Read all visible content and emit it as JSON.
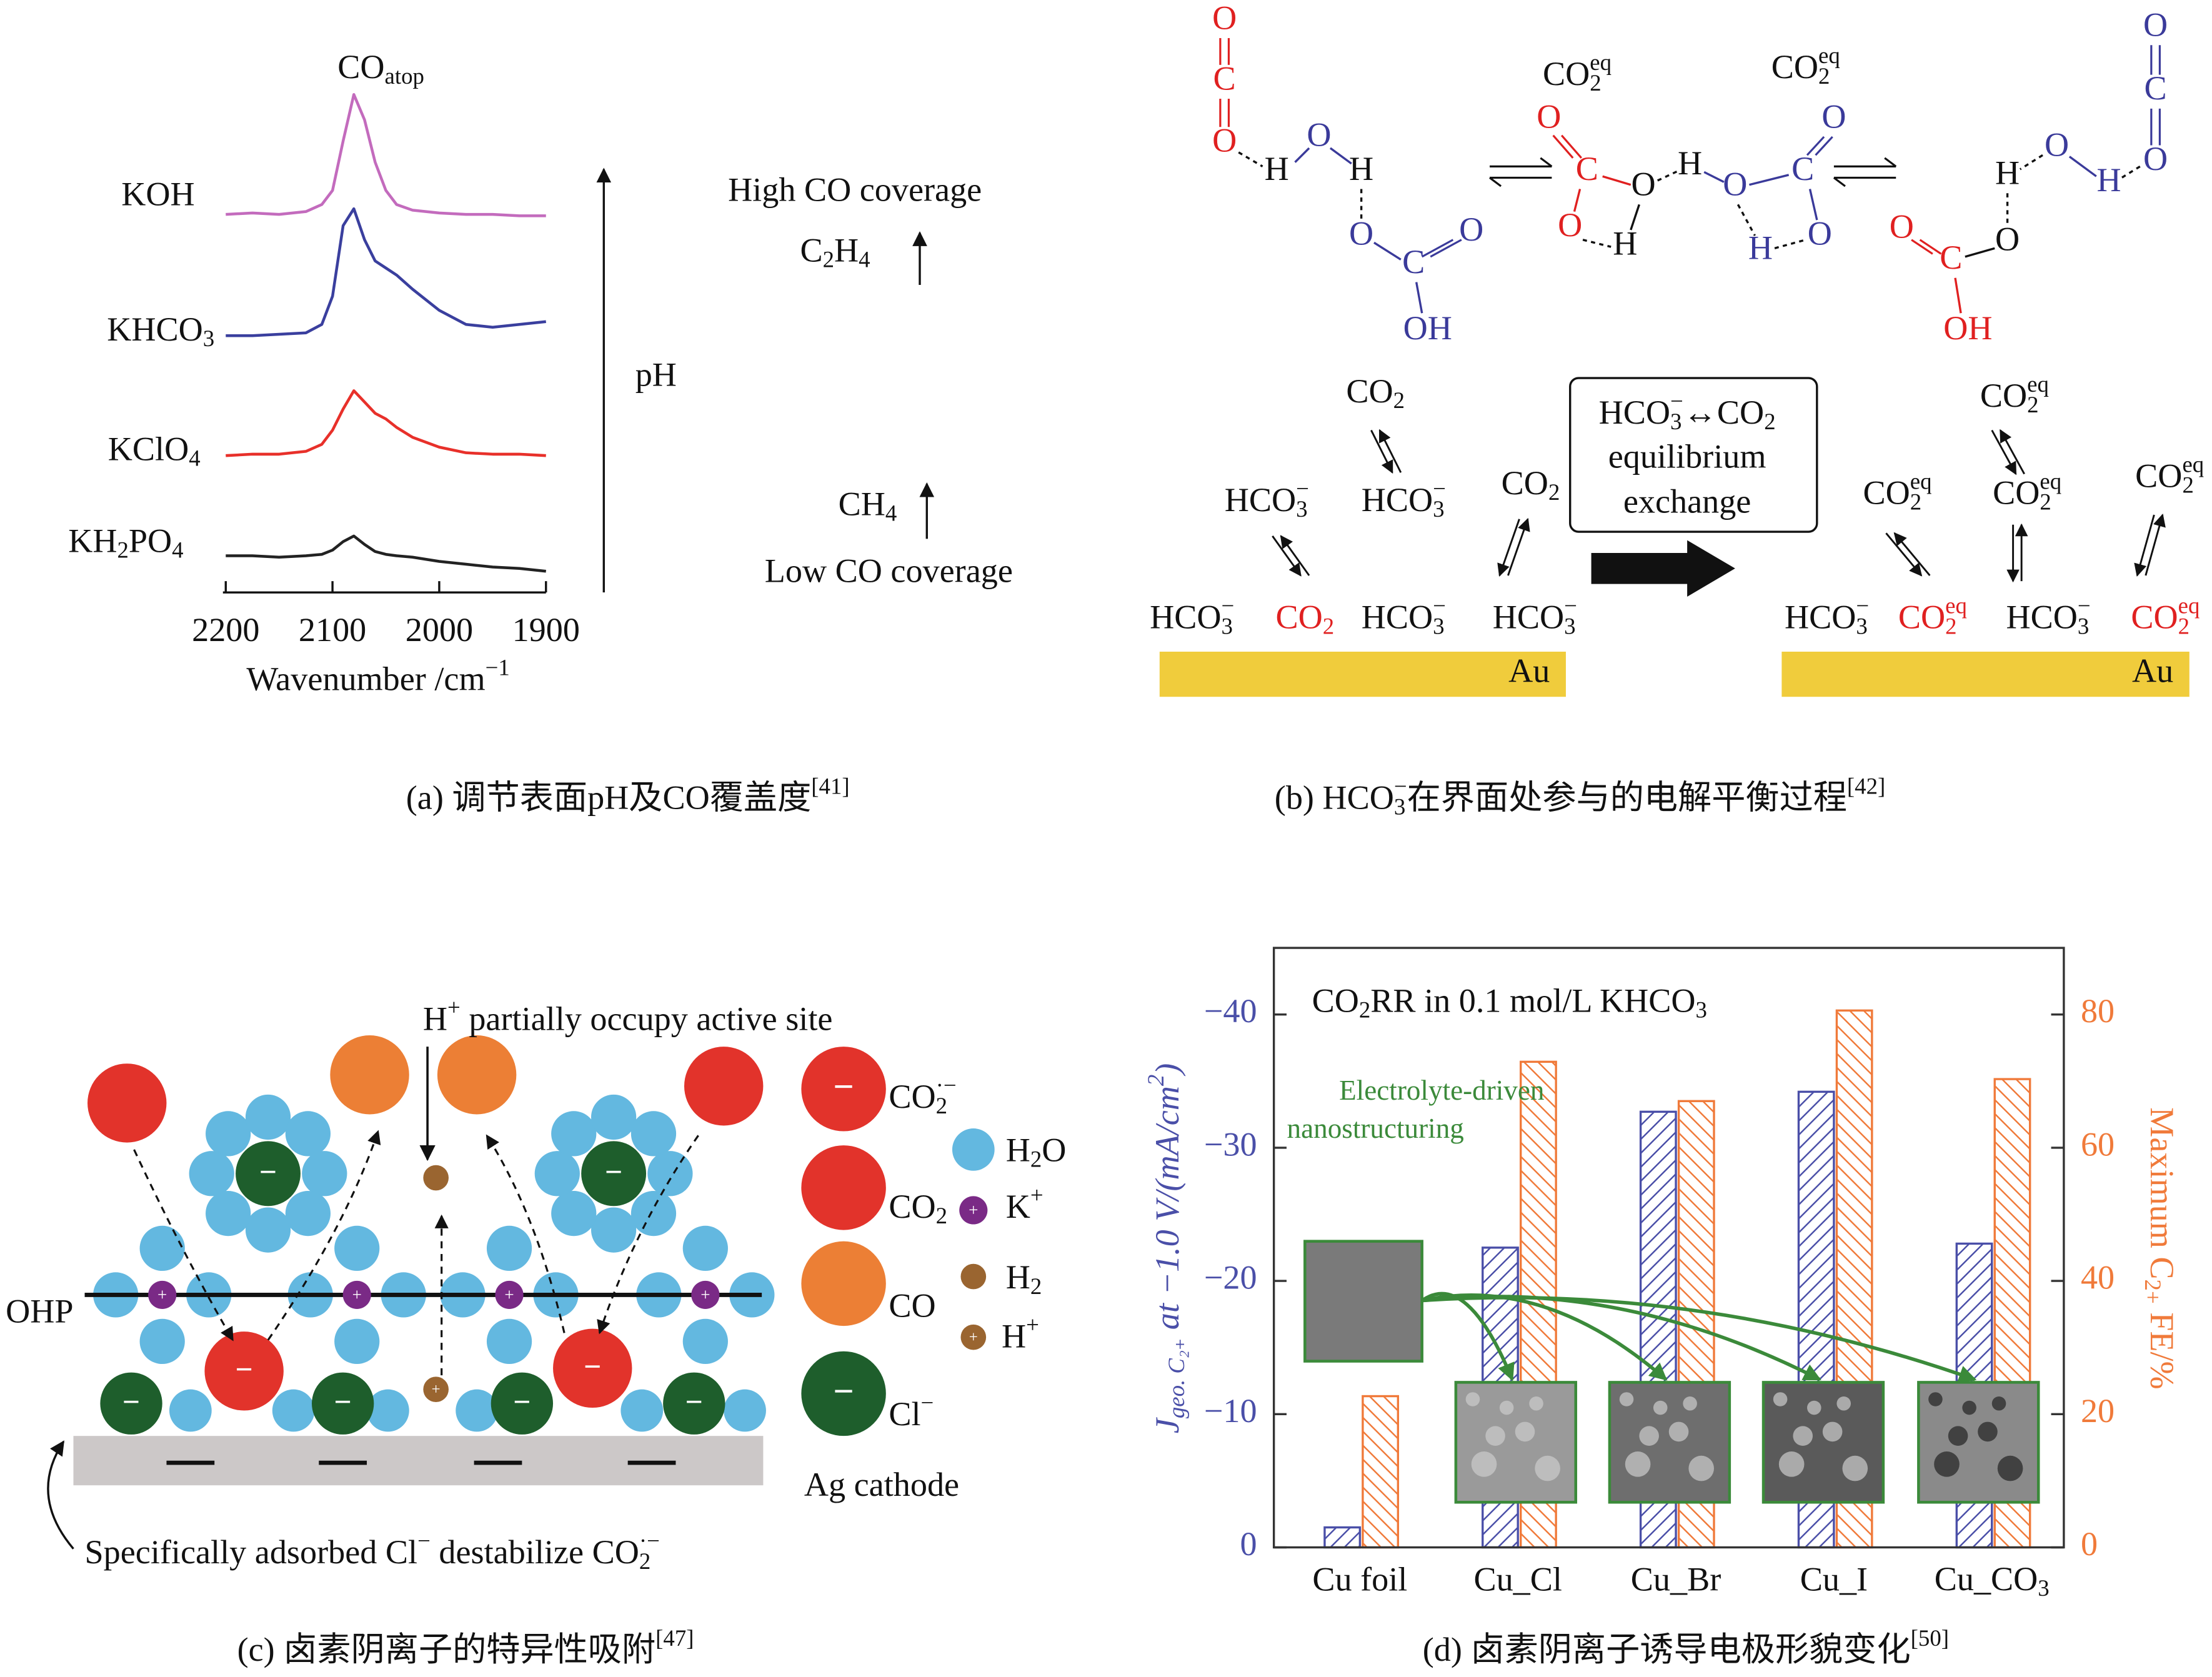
{
  "chart_data": [
    {
      "type": "line",
      "peak_label": [
        {
          "text": "CO"
        },
        {
          "sub": "atop"
        }
      ],
      "x": [
        2200,
        2175,
        2150,
        2125,
        2110,
        2100,
        2090,
        2080,
        2070,
        2060,
        2050,
        2040,
        2025,
        2000,
        1975,
        1950,
        1925,
        1900
      ],
      "series": [
        {
          "name": "KOH",
          "color": "#c36bbd",
          "values": [
            0.03,
            0.04,
            0.03,
            0.05,
            0.1,
            0.2,
            0.55,
            0.88,
            0.7,
            0.4,
            0.2,
            0.1,
            0.06,
            0.04,
            0.03,
            0.03,
            0.02,
            0.02
          ]
        },
        {
          "name": [
            {
              "text": "KHCO"
            },
            {
              "sub": "3"
            }
          ],
          "color": "#3a3f9e",
          "values": [
            0.02,
            0.02,
            0.03,
            0.04,
            0.1,
            0.3,
            0.8,
            0.92,
            0.7,
            0.55,
            0.5,
            0.45,
            0.35,
            0.2,
            0.1,
            0.08,
            0.1,
            0.12
          ]
        },
        {
          "name": [
            {
              "text": "KClO"
            },
            {
              "sub": "4"
            }
          ],
          "color": "#e8302a",
          "values": [
            0.02,
            0.03,
            0.03,
            0.05,
            0.1,
            0.2,
            0.35,
            0.48,
            0.4,
            0.32,
            0.28,
            0.22,
            0.15,
            0.08,
            0.04,
            0.03,
            0.03,
            0.02
          ]
        },
        {
          "name": [
            {
              "text": "KH"
            },
            {
              "sub": "2"
            },
            {
              "text": "PO"
            },
            {
              "sub": "4"
            }
          ],
          "color": "#222222",
          "values": [
            0.12,
            0.12,
            0.11,
            0.12,
            0.13,
            0.16,
            0.22,
            0.26,
            0.2,
            0.15,
            0.13,
            0.12,
            0.11,
            0.08,
            0.06,
            0.04,
            0.03,
            0.01
          ]
        }
      ],
      "xlim": [
        2200,
        1900
      ],
      "xticks": [
        2200,
        2100,
        2000,
        1900
      ],
      "x_label": [
        {
          "text": "Wavenumber /cm"
        },
        {
          "sup": "−1"
        }
      ],
      "ph_label": "pH",
      "high_label": "High CO coverage",
      "c2h4_label": [
        {
          "text": "C"
        },
        {
          "sub": "2"
        },
        {
          "text": "H"
        },
        {
          "sub": "4"
        }
      ],
      "ch4_label": [
        {
          "text": "CH"
        },
        {
          "sub": "4"
        }
      ],
      "low_label": "Low CO coverage",
      "caption": [
        {
          "text": "(a) 调节表面pH及CO覆盖度"
        },
        {
          "sup": "[41]"
        }
      ]
    },
    {
      "type": "bar",
      "categories": [
        "Cu foil",
        "Cu_Cl",
        "Cu_Br",
        "Cu_I",
        [
          {
            "text": "Cu_CO"
          },
          {
            "sub": "3"
          }
        ]
      ],
      "series": [
        {
          "color": "#4a4fa8",
          "values": [
            -1.5,
            -22.5,
            -32.7,
            -34.2,
            -22.8
          ]
        },
        {
          "color": "#f07a3a",
          "axis": "y2",
          "values": [
            22.7,
            72.9,
            67.0,
            80.6,
            70.3
          ]
        }
      ],
      "ylim": [
        0,
        -45
      ],
      "yticks": [
        0,
        {
          "value": -10,
          "label": "−10"
        },
        {
          "value": -20,
          "label": "−20"
        },
        {
          "value": -30,
          "label": "−30"
        },
        {
          "value": -40,
          "label": "−40"
        }
      ],
      "y2lim": [
        0,
        90
      ],
      "y2ticks": [
        0,
        20,
        40,
        60,
        80
      ],
      "y_label": [
        {
          "text": "J"
        },
        {
          "sub": "geo. C₂₊"
        },
        {
          "text": " at −1.0 V/(mA/cm"
        },
        {
          "sup": "2"
        },
        {
          "text": ")"
        }
      ],
      "y2_label": [
        {
          "text": "Maximum C"
        },
        {
          "sub": "2+"
        },
        {
          "text": " FE/%"
        }
      ],
      "annotation": [
        {
          "text": "CO"
        },
        {
          "sub": "2"
        },
        {
          "text": "RR in 0.1 mol/L KHCO"
        },
        {
          "sub": "3"
        }
      ],
      "note_line1": "Electrolyte-driven",
      "note_line2": "nanostructuring",
      "caption": [
        {
          "text": "(d) 卤素阴离子诱导电极形貌变化"
        },
        {
          "sup": "[50]"
        }
      ]
    }
  ],
  "panel_b": {
    "atoms": [
      {
        "text": "O",
        "color": "#e02020"
      },
      {
        "text": "C",
        "color": "#e02020"
      },
      {
        "text": "O",
        "color": "#e02020"
      },
      {
        "text": "H",
        "color": "#111111"
      },
      {
        "text": "O",
        "color": "#3a3a9a"
      },
      {
        "text": "H",
        "color": "#111111"
      },
      {
        "text": "O",
        "color": "#3a3a9a"
      },
      {
        "text": "C",
        "color": "#3a3a9a"
      },
      {
        "text": "O",
        "color": "#3a3a9a"
      },
      {
        "text": "OH",
        "color": "#3a3a9a"
      },
      {
        "text": "O",
        "color": "#e02020"
      },
      {
        "text": "C",
        "color": "#e02020"
      },
      {
        "text": "O",
        "color": "#e02020"
      },
      {
        "text": "O",
        "color": "#111111"
      },
      {
        "text": "H",
        "color": "#111111"
      },
      {
        "text": "H",
        "color": "#111111"
      },
      {
        "text": "O",
        "color": "#3a3a9a"
      },
      {
        "text": "C",
        "color": "#3a3a9a"
      },
      {
        "text": "O",
        "color": "#3a3a9a"
      },
      {
        "text": "H",
        "color": "#3a3a9a"
      },
      {
        "text": "O",
        "color": "#3a3a9a"
      },
      {
        "text": "O",
        "color": "#3a3a9a"
      },
      {
        "text": "C",
        "color": "#3a3a9a"
      },
      {
        "text": "O",
        "color": "#3a3a9a"
      },
      {
        "text": "O",
        "color": "#3a3a9a"
      },
      {
        "text": "H",
        "color": "#3a3a9a"
      },
      {
        "text": "H",
        "color": "#111111"
      },
      {
        "text": "O",
        "color": "#111111"
      },
      {
        "text": "C",
        "color": "#e02020"
      },
      {
        "text": "O",
        "color": "#e02020"
      },
      {
        "text": "OH",
        "color": "#e02020"
      }
    ],
    "species": [
      {
        "text": [
          {
            "text": "CO"
          },
          {
            "sub": "2"
          },
          {
            "sup": "eq"
          }
        ],
        "color": "#111111"
      },
      {
        "text": [
          {
            "text": "CO"
          },
          {
            "sub": "2"
          },
          {
            "sup": "eq"
          }
        ],
        "color": "#111111"
      },
      {
        "text": [
          {
            "text": "CO"
          },
          {
            "sub": "2"
          }
        ],
        "color": "#111111"
      },
      {
        "text": [
          {
            "text": "HCO"
          },
          {
            "sub": "3"
          },
          {
            "sup": "−"
          }
        ],
        "color": "#111111"
      },
      {
        "text": [
          {
            "text": "HCO"
          },
          {
            "sub": "3"
          },
          {
            "sup": "−"
          }
        ],
        "color": "#111111"
      },
      {
        "text": [
          {
            "text": "CO"
          },
          {
            "sub": "2"
          }
        ],
        "color": "#111111"
      },
      {
        "text": [
          {
            "text": "HCO"
          },
          {
            "sub": "3"
          },
          {
            "sup": "−"
          }
        ],
        "color": "#111111"
      },
      {
        "text": [
          {
            "text": "CO"
          },
          {
            "sub": "2"
          }
        ],
        "color": "#e02020"
      },
      {
        "text": [
          {
            "text": "HCO"
          },
          {
            "sub": "3"
          },
          {
            "sup": "−"
          }
        ],
        "color": "#111111"
      },
      {
        "text": [
          {
            "text": "HCO"
          },
          {
            "sub": "3"
          },
          {
            "sup": "−"
          }
        ],
        "color": "#111111"
      },
      {
        "text": [
          {
            "text": "CO"
          },
          {
            "sub": "2"
          },
          {
            "sup": "eq"
          }
        ],
        "color": "#111111"
      },
      {
        "text": [
          {
            "text": "CO"
          },
          {
            "sub": "2"
          },
          {
            "sup": "eq"
          }
        ],
        "color": "#111111"
      },
      {
        "text": [
          {
            "text": "CO"
          },
          {
            "sub": "2"
          },
          {
            "sup": "eq"
          }
        ],
        "color": "#111111"
      },
      {
        "text": [
          {
            "text": "CO"
          },
          {
            "sub": "2"
          },
          {
            "sup": "eq"
          }
        ],
        "color": "#111111"
      },
      {
        "text": [
          {
            "text": "HCO"
          },
          {
            "sub": "3"
          },
          {
            "sup": "−"
          }
        ],
        "color": "#111111"
      },
      {
        "text": [
          {
            "text": "CO"
          },
          {
            "sub": "2"
          },
          {
            "sup": "eq"
          }
        ],
        "color": "#e02020"
      },
      {
        "text": [
          {
            "text": "HCO"
          },
          {
            "sub": "3"
          },
          {
            "sup": "−"
          }
        ],
        "color": "#111111"
      },
      {
        "text": [
          {
            "text": "CO"
          },
          {
            "sub": "2"
          },
          {
            "sup": "eq"
          }
        ],
        "color": "#e02020"
      }
    ],
    "box_line1": [
      {
        "text": "HCO"
      },
      {
        "sub": "3"
      },
      {
        "sup": "−"
      },
      {
        "text": "↔CO"
      },
      {
        "sub": "2"
      }
    ],
    "box_line2": "equilibrium",
    "box_line3": "exchange",
    "electrode": "Au",
    "caption": [
      {
        "text": "(b) HCO"
      },
      {
        "sub": "3"
      },
      {
        "sup": "−"
      },
      {
        "text": "在界面处参与的电解平衡过程"
      },
      {
        "sup": "[42]"
      }
    ]
  },
  "panel_c": {
    "proton_note": [
      {
        "text": "H"
      },
      {
        "sup": "+"
      },
      {
        "text": " partially occupy active site"
      }
    ],
    "ohp": "OHP",
    "minus": "−",
    "plus": "+",
    "legend": [
      [
        {
          "text": "CO"
        },
        {
          "sub": "2"
        },
        {
          "sup": "·−"
        }
      ],
      [
        {
          "text": "H"
        },
        {
          "sub": "2"
        },
        {
          "text": "O"
        }
      ],
      [
        {
          "text": "CO"
        },
        {
          "sub": "2"
        }
      ],
      [
        {
          "text": "K"
        },
        {
          "sup": "+"
        }
      ],
      "CO",
      [
        {
          "text": "H"
        },
        {
          "sub": "2"
        }
      ],
      [
        {
          "text": "H"
        },
        {
          "sup": "+"
        }
      ],
      [
        {
          "text": "Cl"
        },
        {
          "sup": "−"
        }
      ]
    ],
    "cathode": "Ag cathode",
    "note": [
      {
        "text": "Specifically adsorbed Cl"
      },
      {
        "sup": "−"
      },
      {
        "text": " destabilize CO"
      },
      {
        "sub": "2"
      },
      {
        "sup": "·−"
      }
    ],
    "caption": [
      {
        "text": "(c) 卤素阴离子的特异性吸附"
      },
      {
        "sup": "[47]"
      }
    ]
  }
}
